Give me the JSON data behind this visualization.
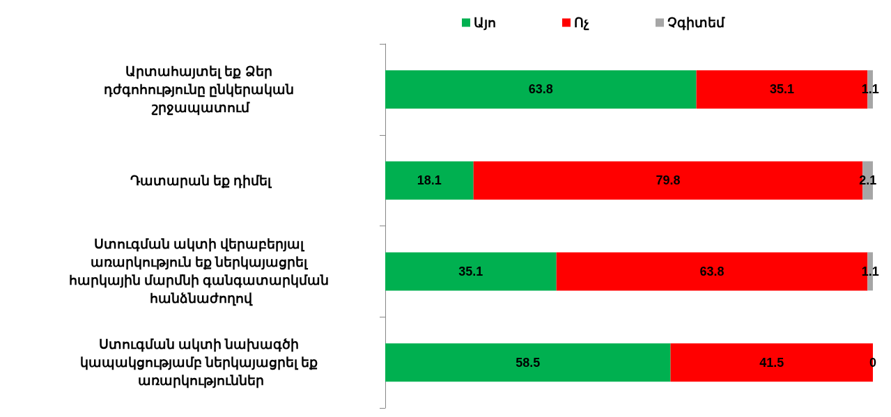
{
  "chart_data": {
    "type": "bar",
    "orientation": "horizontal",
    "stacked": true,
    "data_labels": true,
    "legend": "top",
    "categories": [
      "Արտահայտել եք Ձեր դժգոհությունը ընկերական շրջապատում",
      "Դատարան եք դիմել",
      "Ստուգման ակտի վերաբերյալ առարկություն եք ներկայացրել հարկային մարմնի գանգատարկման հանձնաժողով",
      "Ստուգման ակտի նախագծի կապակցությամբ ներկայացրել եք առարկություններ"
    ],
    "series": [
      {
        "name": "Այո",
        "color": "#00b050",
        "values": [
          63.8,
          18.1,
          35.1,
          58.5
        ]
      },
      {
        "name": "Ոչ",
        "color": "#ff0000",
        "values": [
          35.1,
          79.8,
          63.8,
          41.5
        ]
      },
      {
        "name": "Չգիտեմ",
        "color": "#a6a6a6",
        "values": [
          1.1,
          2.1,
          1.1,
          0
        ]
      }
    ]
  }
}
